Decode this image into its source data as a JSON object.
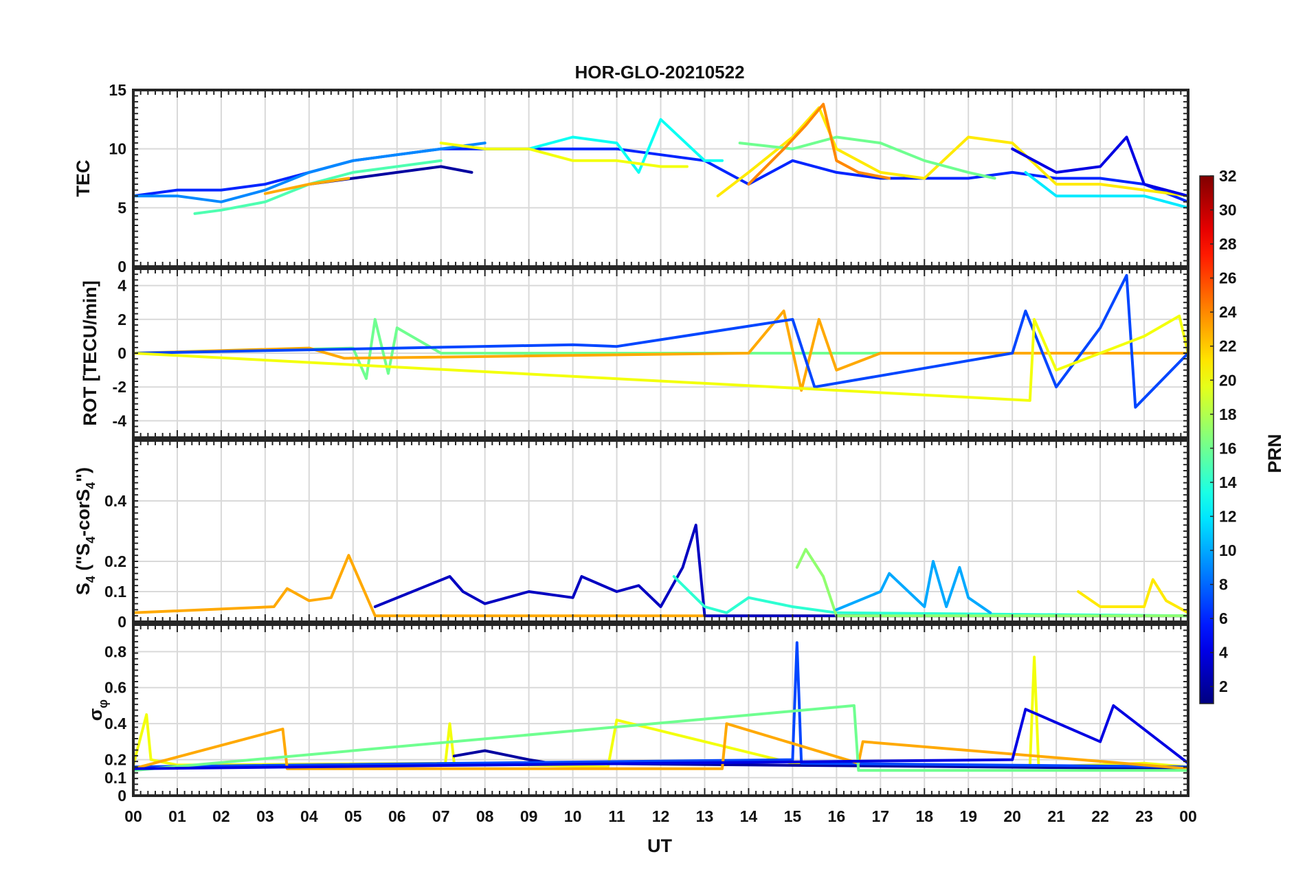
{
  "chart_data": {
    "type": "line",
    "title": "HOR-GLO-20210522",
    "xlabel": "UT",
    "x_tick_labels": [
      "00",
      "01",
      "02",
      "03",
      "04",
      "05",
      "06",
      "07",
      "08",
      "09",
      "10",
      "11",
      "12",
      "13",
      "14",
      "15",
      "16",
      "17",
      "18",
      "19",
      "20",
      "21",
      "22",
      "23",
      "00"
    ],
    "xlim_hours": [
      0,
      24
    ],
    "grid": "on",
    "panels": [
      {
        "name": "TEC",
        "ylabel": "TEC",
        "ylim": [
          0,
          15
        ],
        "yticks": [
          0,
          5,
          10,
          15
        ],
        "ytick_labels": [
          "0",
          "5",
          "10",
          "15"
        ],
        "series": [
          {
            "prn": 6,
            "x": [
              0,
              1,
              2,
              3,
              4,
              5,
              6,
              7,
              8,
              9,
              10,
              11,
              12,
              13,
              14,
              15,
              16,
              17,
              18,
              19,
              20,
              21,
              22,
              23,
              24
            ],
            "y": [
              6,
              6.5,
              6.5,
              7,
              8,
              9,
              9.5,
              10,
              10,
              10,
              10,
              10,
              9.5,
              9,
              7,
              9,
              8,
              7.5,
              7.5,
              7.5,
              8,
              7.5,
              7.5,
              7,
              5.5
            ]
          },
          {
            "prn": 9,
            "x": [
              0,
              1,
              2,
              3,
              4,
              5,
              6,
              7,
              8
            ],
            "y": [
              6,
              6,
              5.5,
              6.5,
              8,
              9,
              9.5,
              10,
              10.5
            ]
          },
          {
            "prn": 2,
            "x": [
              4,
              5,
              6,
              7,
              7.7
            ],
            "y": [
              7,
              7.5,
              8,
              8.5,
              8
            ]
          },
          {
            "prn": 15,
            "x": [
              1.4,
              2,
              3,
              4,
              5,
              6,
              7
            ],
            "y": [
              4.5,
              4.8,
              5.5,
              7,
              8,
              8.5,
              9
            ]
          },
          {
            "prn": 23,
            "x": [
              3,
              4,
              4.9
            ],
            "y": [
              6.2,
              7,
              7.5
            ]
          },
          {
            "prn": 13,
            "x": [
              9,
              10,
              11,
              11.5,
              12,
              13,
              13.4
            ],
            "y": [
              10,
              11,
              10.5,
              8,
              12.5,
              9,
              9
            ]
          },
          {
            "prn": 20,
            "x": [
              7,
              8,
              9,
              10,
              11,
              12,
              12.6
            ],
            "y": [
              10.5,
              10,
              10,
              9,
              9,
              8.5,
              8.5
            ]
          },
          {
            "prn": 21,
            "x": [
              13.3,
              14,
              15,
              15.6,
              16,
              17,
              18,
              19,
              20,
              21,
              22,
              23,
              24
            ],
            "y": [
              6,
              8,
              11,
              13.5,
              10,
              8,
              7.5,
              11,
              10.5,
              7,
              7,
              6.5,
              6
            ]
          },
          {
            "prn": 16,
            "x": [
              13.8,
              15,
              16,
              17,
              18,
              19,
              19.6
            ],
            "y": [
              10.5,
              10,
              11,
              10.5,
              9,
              8,
              7.5
            ]
          },
          {
            "prn": 24,
            "x": [
              14,
              14.8,
              15.3,
              15.7,
              16,
              16.5,
              17.2
            ],
            "y": [
              7,
              10,
              12,
              13.8,
              9,
              8,
              7.5
            ]
          },
          {
            "prn": 12,
            "x": [
              20.3,
              21,
              22,
              23,
              24
            ],
            "y": [
              8,
              6,
              6,
              6,
              5
            ]
          },
          {
            "prn": 4,
            "x": [
              20,
              21,
              22,
              22.6,
              23,
              24
            ],
            "y": [
              10,
              8,
              8.5,
              11,
              7,
              6
            ]
          }
        ]
      },
      {
        "name": "ROT",
        "ylabel": "ROT [TECU/min]",
        "ylim": [
          -5,
          5
        ],
        "yticks": [
          -4,
          -2,
          0,
          2,
          4
        ],
        "ytick_labels": [
          "-4",
          "-2",
          "0",
          "2",
          "4"
        ],
        "series": [
          {
            "prn": 16,
            "x": [
              0,
              5,
              5.3,
              5.5,
              5.8,
              6,
              7,
              24
            ],
            "y": [
              0,
              0.3,
              -1.5,
              2,
              -1.2,
              1.5,
              0,
              0
            ]
          },
          {
            "prn": 23,
            "x": [
              0,
              4,
              4.8,
              14,
              14.8,
              15.2,
              15.6,
              16,
              17,
              24
            ],
            "y": [
              0,
              0.3,
              -0.3,
              0,
              2.5,
              -2.2,
              2,
              -1,
              0,
              0
            ]
          },
          {
            "prn": 7,
            "x": [
              0,
              10,
              11,
              15,
              15.5,
              20,
              20.3,
              21,
              22,
              22.6,
              22.8,
              24
            ],
            "y": [
              0,
              0.5,
              0.4,
              2,
              -2,
              0,
              2.5,
              -2,
              1.5,
              4.6,
              -3.2,
              0
            ]
          },
          {
            "prn": 20,
            "x": [
              0,
              20.4,
              20.5,
              21,
              23,
              23.8,
              24
            ],
            "y": [
              0,
              -2.8,
              2,
              -1,
              1,
              2.2,
              0
            ]
          }
        ]
      },
      {
        "name": "S4",
        "ylabel": "S",
        "ylabel_sub": "4",
        "ylabel_rest": " (\"S",
        "ylabel_sub2": "4",
        "ylabel_rest2": "-corS",
        "ylabel_sub3": "4",
        "ylabel_end": "\")",
        "ylim": [
          0,
          0.6
        ],
        "yticks": [
          0,
          0.1,
          0.2,
          0.4
        ],
        "ytick_labels": [
          "0",
          "0.1",
          "0.2",
          "0.4"
        ],
        "series": [
          {
            "prn": 23,
            "x": [
              0,
              3.2,
              3.5,
              4,
              4.5,
              4.9,
              5.5,
              24
            ],
            "y": [
              0.03,
              0.05,
              0.11,
              0.07,
              0.08,
              0.22,
              0.02,
              0.02
            ]
          },
          {
            "prn": 3,
            "x": [
              5.5,
              7.2,
              7.5,
              8,
              9,
              10,
              10.2,
              11,
              11.5,
              12,
              12.5,
              12.8,
              13,
              24
            ],
            "y": [
              0.05,
              0.15,
              0.1,
              0.06,
              0.1,
              0.08,
              0.15,
              0.1,
              0.12,
              0.05,
              0.18,
              0.32,
              0.02,
              0.02
            ]
          },
          {
            "prn": 14,
            "x": [
              12.3,
              13,
              13.5,
              14,
              15,
              16,
              24
            ],
            "y": [
              0.15,
              0.05,
              0.03,
              0.08,
              0.05,
              0.03,
              0.02
            ]
          },
          {
            "prn": 17,
            "x": [
              15.1,
              15.3,
              15.7,
              16,
              24
            ],
            "y": [
              0.18,
              0.24,
              0.15,
              0.02,
              0.02
            ]
          },
          {
            "prn": 10,
            "x": [
              16,
              17,
              17.2,
              18,
              18.2,
              18.5,
              18.8,
              19,
              19.5
            ],
            "y": [
              0.04,
              0.1,
              0.16,
              0.05,
              0.2,
              0.05,
              0.18,
              0.08,
              0.03
            ]
          },
          {
            "prn": 21,
            "x": [
              21.5,
              22,
              23,
              23.2,
              23.5,
              24
            ],
            "y": [
              0.1,
              0.05,
              0.05,
              0.14,
              0.07,
              0.03
            ]
          }
        ]
      },
      {
        "name": "sigma_phi",
        "ylabel": "σ",
        "ylabel_sub": "φ",
        "ylim": [
          0,
          0.95
        ],
        "yticks": [
          0,
          0.1,
          0.2,
          0.4,
          0.6,
          0.8
        ],
        "ytick_labels": [
          "0",
          "0.1",
          "0.2",
          "0.4",
          "0.6",
          "0.8"
        ],
        "series": [
          {
            "prn": 20,
            "x": [
              0,
              0.3,
              0.4,
              1,
              7.1,
              7.2,
              7.3,
              10.8,
              11,
              15,
              20.4,
              20.5,
              20.6,
              23,
              24
            ],
            "y": [
              0.17,
              0.45,
              0.2,
              0.17,
              0.18,
              0.4,
              0.18,
              0.16,
              0.42,
              0.18,
              0.16,
              0.77,
              0.16,
              0.18,
              0.16
            ]
          },
          {
            "prn": 2,
            "x": [
              7.3,
              8,
              9,
              9.5,
              24
            ],
            "y": [
              0.22,
              0.25,
              0.2,
              0.18,
              0.15
            ]
          },
          {
            "prn": 7,
            "x": [
              0,
              15,
              15.1,
              15.2,
              24
            ],
            "y": [
              0.16,
              0.2,
              0.85,
              0.18,
              0.16
            ]
          },
          {
            "prn": 23,
            "x": [
              0,
              3.4,
              3.5,
              13.4,
              13.5,
              16.5,
              16.6,
              24
            ],
            "y": [
              0.15,
              0.37,
              0.15,
              0.15,
              0.4,
              0.18,
              0.3,
              0.15
            ]
          },
          {
            "prn": 16,
            "x": [
              0,
              16.4,
              16.5,
              24
            ],
            "y": [
              0.14,
              0.5,
              0.14,
              0.14
            ]
          },
          {
            "prn": 4,
            "x": [
              0,
              20,
              20.3,
              22,
              22.3,
              24
            ],
            "y": [
              0.15,
              0.2,
              0.48,
              0.3,
              0.5,
              0.18
            ]
          }
        ]
      }
    ],
    "colorbar": {
      "label": "PRN",
      "min": 1,
      "max": 32,
      "tick_labels": [
        "2",
        "4",
        "6",
        "8",
        "10",
        "12",
        "14",
        "16",
        "18",
        "20",
        "22",
        "24",
        "26",
        "28",
        "30",
        "32"
      ],
      "colormap": "jet"
    }
  }
}
